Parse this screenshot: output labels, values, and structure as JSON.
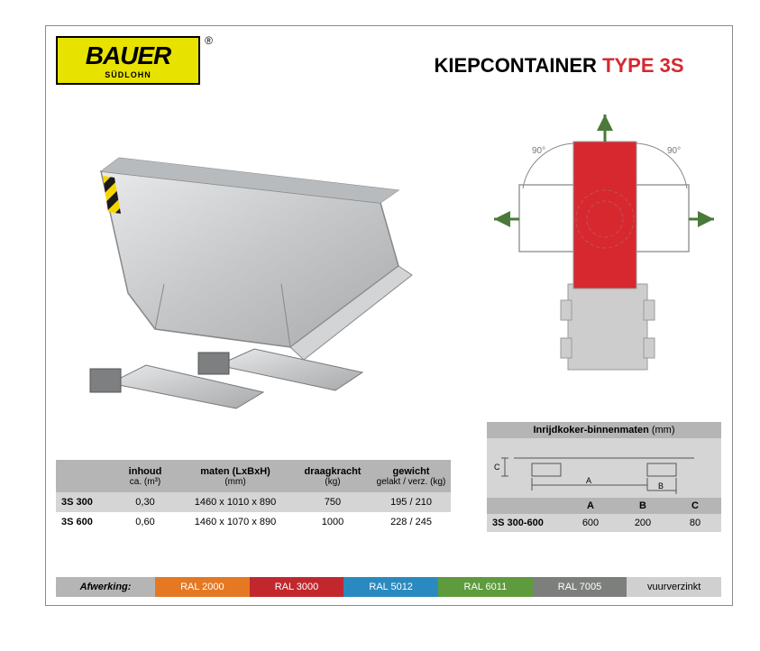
{
  "logo": {
    "main": "BAUER",
    "sub": "SÜDLOHN",
    "reg": "®"
  },
  "title": {
    "part1": "KIEPCONTAINER ",
    "part2": "TYPE 3S"
  },
  "diagram": {
    "angle_left": "90°",
    "angle_right": "90°"
  },
  "spec_table": {
    "columns": [
      {
        "label": "inhoud",
        "sub": "ca. (m³)"
      },
      {
        "label": "maten (LxBxH)",
        "sub": "(mm)"
      },
      {
        "label": "draagkracht",
        "sub": "(kg)"
      },
      {
        "label": "gewicht",
        "sub": "gelakt / verz. (kg)"
      }
    ],
    "rows": [
      {
        "model": "3S 300",
        "inhoud": "0,30",
        "maten": "1460 x 1010 x 890",
        "draag": "750",
        "gewicht": "195 / 210"
      },
      {
        "model": "3S 600",
        "inhoud": "0,60",
        "maten": "1460 x 1070 x 890",
        "draag": "1000",
        "gewicht": "228 / 245"
      }
    ]
  },
  "dim_table": {
    "title": "Inrijdkoker-binnenmaten",
    "title_sub": "(mm)",
    "drawing_labels": {
      "a": "A",
      "b": "B",
      "c": "C"
    },
    "columns": [
      "A",
      "B",
      "C"
    ],
    "rows": [
      {
        "model": "3S 300-600",
        "a": "600",
        "b": "200",
        "c": "80"
      }
    ]
  },
  "finishes": {
    "label": "Afwerking:",
    "items": [
      {
        "label": "RAL 2000",
        "color": "#e57822"
      },
      {
        "label": "RAL 3000",
        "color": "#c1282d"
      },
      {
        "label": "RAL 5012",
        "color": "#2a8abf"
      },
      {
        "label": "RAL 6011",
        "color": "#5e9b3d"
      },
      {
        "label": "RAL 7005",
        "color": "#7d7f7d"
      },
      {
        "label": "vuurverzinkt",
        "color": "#d0d0d0",
        "dark_text": true
      }
    ]
  }
}
